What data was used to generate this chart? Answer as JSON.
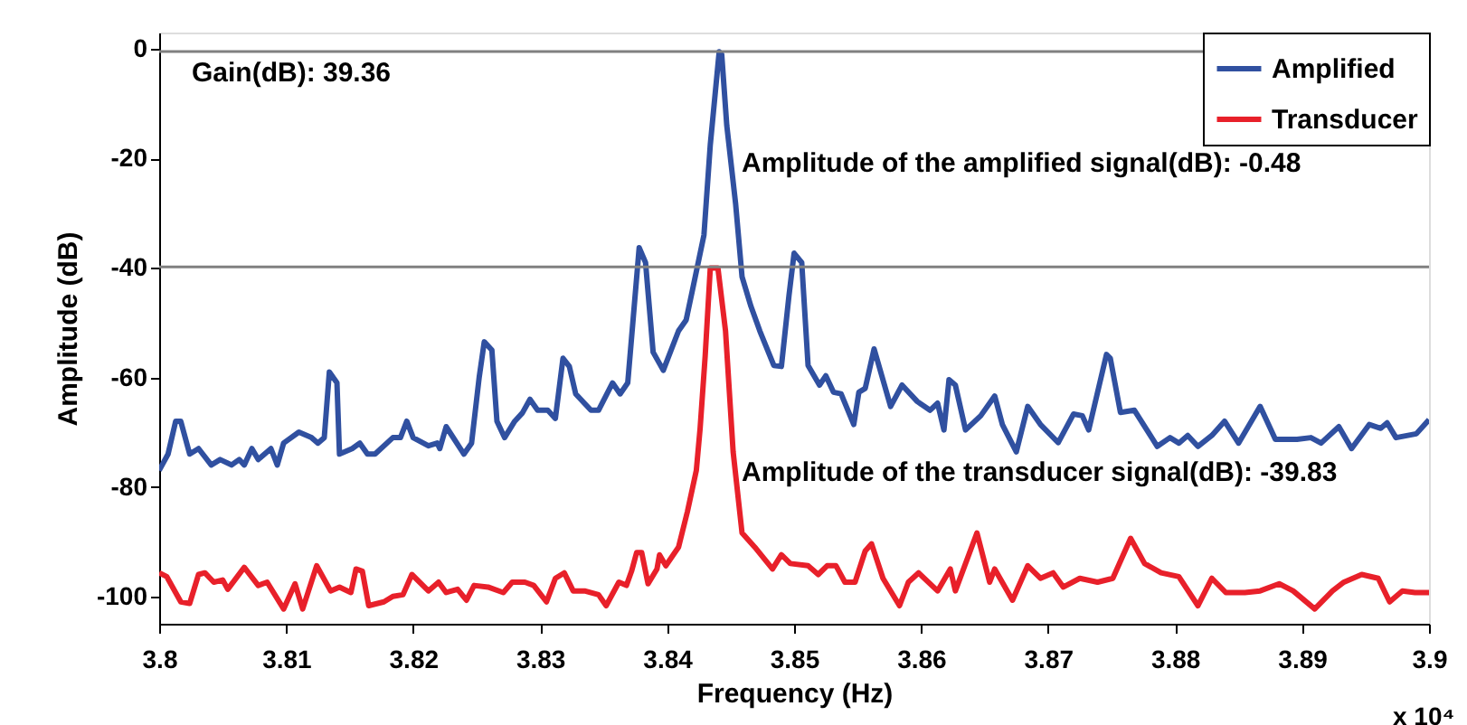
{
  "chart_data": {
    "type": "line",
    "xlabel": "Frequency (Hz)",
    "ylabel": "Amplitude (dB)",
    "xlim": [
      3.8,
      3.9
    ],
    "xticks": [
      3.8,
      3.81,
      3.82,
      3.83,
      3.84,
      3.85,
      3.86,
      3.87,
      3.88,
      3.89,
      3.9
    ],
    "ylim": [
      -105,
      3
    ],
    "yticks": [
      -100,
      -80,
      -60,
      -40,
      -20,
      0
    ],
    "grid": false,
    "legend": "top right",
    "line_style": "solid",
    "marker": "none",
    "ref_lines": [
      {
        "axis": "y",
        "value": -0.48,
        "color": "#808080"
      },
      {
        "axis": "y",
        "value": -39.83,
        "color": "#808080"
      }
    ],
    "annotations": [
      "Gain(dB): 39.36",
      "Amplitude of the amplified signal(dB): -0.48",
      "Amplitude of the transducer signal(dB): -39.83",
      "x 10⁴"
    ],
    "series": [
      {
        "name": "Amplified",
        "color": "#3050a0",
        "x": [
          3.8,
          3.8007,
          3.8013,
          3.8017,
          3.8024,
          3.8031,
          3.8041,
          3.8048,
          3.8057,
          3.8063,
          3.8067,
          3.8073,
          3.8078,
          3.8088,
          3.8093,
          3.8098,
          3.811,
          3.812,
          3.8125,
          3.813,
          3.8134,
          3.814,
          3.8142,
          3.8152,
          3.8158,
          3.8164,
          3.817,
          3.8184,
          3.819,
          3.8195,
          3.82,
          3.8212,
          3.8219,
          3.8221,
          3.8226,
          3.824,
          3.8246,
          3.8252,
          3.8256,
          3.8262,
          3.8266,
          3.8272,
          3.828,
          3.8286,
          3.8292,
          3.8298,
          3.8306,
          3.8312,
          3.8318,
          3.8323,
          3.8328,
          3.834,
          3.8346,
          3.8357,
          3.8363,
          3.8369,
          3.8378,
          3.8383,
          3.8389,
          3.8397,
          3.8409,
          3.8415,
          3.842,
          3.8429,
          3.8434,
          3.8441,
          3.8443,
          3.8447,
          3.8454,
          3.8459,
          3.8466,
          3.8473,
          3.8484,
          3.849,
          3.8496,
          3.85,
          3.8506,
          3.8511,
          3.852,
          3.8525,
          3.8531,
          3.8537,
          3.8547,
          3.8551,
          3.8556,
          3.8563,
          3.8576,
          3.8585,
          3.8597,
          3.8607,
          3.8613,
          3.8618,
          3.8622,
          3.8627,
          3.8635,
          3.8647,
          3.8658,
          3.8664,
          3.8675,
          3.8684,
          3.8694,
          3.8708,
          3.872,
          3.8727,
          3.8732,
          3.8746,
          3.8749,
          3.8757,
          3.8768,
          3.8786,
          3.8796,
          3.8803,
          3.881,
          3.8818,
          3.8829,
          3.8839,
          3.885,
          3.8867,
          3.8879,
          3.8896,
          3.8907,
          3.8915,
          3.8929,
          3.8939,
          3.8953,
          3.8962,
          3.8967,
          3.8974,
          3.899,
          3.9
        ],
        "values": [
          -77,
          -74,
          -68,
          -68,
          -74,
          -73,
          -76,
          -75,
          -76,
          -75,
          -76,
          -73,
          -75,
          -73,
          -76,
          -72,
          -70,
          -71,
          -72,
          -71,
          -59,
          -61,
          -74,
          -73,
          -72,
          -74,
          -74,
          -71,
          -71,
          -68,
          -71,
          -72.5,
          -72,
          -73,
          -69,
          -74,
          -72,
          -60,
          -53.5,
          -55,
          -68,
          -71,
          -68,
          -66.5,
          -64,
          -66,
          -66,
          -67.5,
          -56.5,
          -58,
          -63,
          -66,
          -66,
          -61,
          -63,
          -61,
          -36.3,
          -39,
          -55.4,
          -58.7,
          -51.5,
          -49.5,
          -44,
          -34,
          -17.5,
          -0.5,
          -1,
          -14,
          -28.4,
          -41.6,
          -47,
          -51.5,
          -57.8,
          -58,
          -45,
          -37.3,
          -39,
          -57.8,
          -61.4,
          -59.7,
          -62.7,
          -63,
          -68.6,
          -62.7,
          -62,
          -54.8,
          -65.3,
          -61.4,
          -64.4,
          -66,
          -64.7,
          -69.6,
          -60.4,
          -61.4,
          -69.6,
          -67,
          -63.4,
          -68.6,
          -73.6,
          -65.3,
          -68.6,
          -71.9,
          -66.7,
          -67,
          -69.6,
          -55.8,
          -56.5,
          -66.4,
          -66,
          -72.6,
          -71,
          -72,
          -70.6,
          -72.6,
          -70.6,
          -68,
          -72,
          -65.3,
          -71.3,
          -71.3,
          -71,
          -72,
          -69,
          -73,
          -68.6,
          -69.3,
          -68.3,
          -71,
          -70.3,
          -67.7
        ]
      },
      {
        "name": "Transducer",
        "color": "#e8202a",
        "x": [
          3.8,
          3.8006,
          3.8017,
          3.8024,
          3.8031,
          3.8036,
          3.8043,
          3.805,
          3.8054,
          3.8067,
          3.8078,
          3.8085,
          3.8098,
          3.8107,
          3.8113,
          3.8124,
          3.8135,
          3.8142,
          3.8151,
          3.8155,
          3.816,
          3.8165,
          3.8177,
          3.8184,
          3.8192,
          3.8199,
          3.8212,
          3.822,
          3.8226,
          3.8235,
          3.8242,
          3.8248,
          3.8259,
          3.8271,
          3.8278,
          3.8288,
          3.8295,
          3.8305,
          3.8312,
          3.8319,
          3.8326,
          3.8335,
          3.8346,
          3.8352,
          3.8362,
          3.8368,
          3.8372,
          3.8376,
          3.838,
          3.8385,
          3.8392,
          3.8394,
          3.8399,
          3.8409,
          3.8416,
          3.8423,
          3.8426,
          3.843,
          3.8434,
          3.844,
          3.8446,
          3.8452,
          3.8459,
          3.8469,
          3.8483,
          3.849,
          3.8497,
          3.8511,
          3.8519,
          3.8526,
          3.8533,
          3.854,
          3.8548,
          3.8556,
          3.8561,
          3.857,
          3.8583,
          3.859,
          3.8598,
          3.8613,
          3.8623,
          3.8627,
          3.8644,
          3.8654,
          3.8658,
          3.8672,
          3.8684,
          3.8694,
          3.8704,
          3.8712,
          3.8725,
          3.8739,
          3.8751,
          3.8765,
          3.8776,
          3.8789,
          3.8803,
          3.8818,
          3.8829,
          3.884,
          3.8855,
          3.8867,
          3.8882,
          3.8893,
          3.891,
          3.8924,
          3.8933,
          3.8947,
          3.896,
          3.8969,
          3.8979,
          3.8989,
          3.9
        ],
        "values": [
          -95.7,
          -96.4,
          -101,
          -101.3,
          -96,
          -95.7,
          -97.4,
          -97,
          -98.7,
          -94.7,
          -98,
          -97.4,
          -102.3,
          -97.7,
          -102.3,
          -94.4,
          -99,
          -98.3,
          -99.3,
          -95,
          -95.4,
          -101.7,
          -101,
          -100,
          -99.7,
          -96,
          -99,
          -97.4,
          -99.3,
          -98.7,
          -100.7,
          -98,
          -98.3,
          -99.3,
          -97.4,
          -97.4,
          -98,
          -101,
          -96.7,
          -95.7,
          -99,
          -99,
          -99.7,
          -101.7,
          -97.4,
          -98,
          -95.4,
          -92,
          -92,
          -97.7,
          -95,
          -92.4,
          -94.4,
          -91,
          -84.5,
          -77,
          -69.3,
          -56,
          -40,
          -40,
          -51.5,
          -73.6,
          -88.4,
          -91,
          -95,
          -92.4,
          -94,
          -94.4,
          -96,
          -94.4,
          -94.4,
          -97.4,
          -97.4,
          -91.7,
          -90.4,
          -96.7,
          -101.7,
          -97.4,
          -95.7,
          -99,
          -95,
          -99,
          -88.4,
          -97.4,
          -95,
          -100.7,
          -94.4,
          -96.7,
          -95.7,
          -98.3,
          -96.7,
          -97.4,
          -96.7,
          -89.4,
          -94,
          -95.7,
          -96.4,
          -101.7,
          -96.7,
          -99.3,
          -99.3,
          -99,
          -97.7,
          -99,
          -102.3,
          -99,
          -97.4,
          -96,
          -96.7,
          -101,
          -99,
          -99.3,
          -99.3
        ]
      }
    ]
  }
}
